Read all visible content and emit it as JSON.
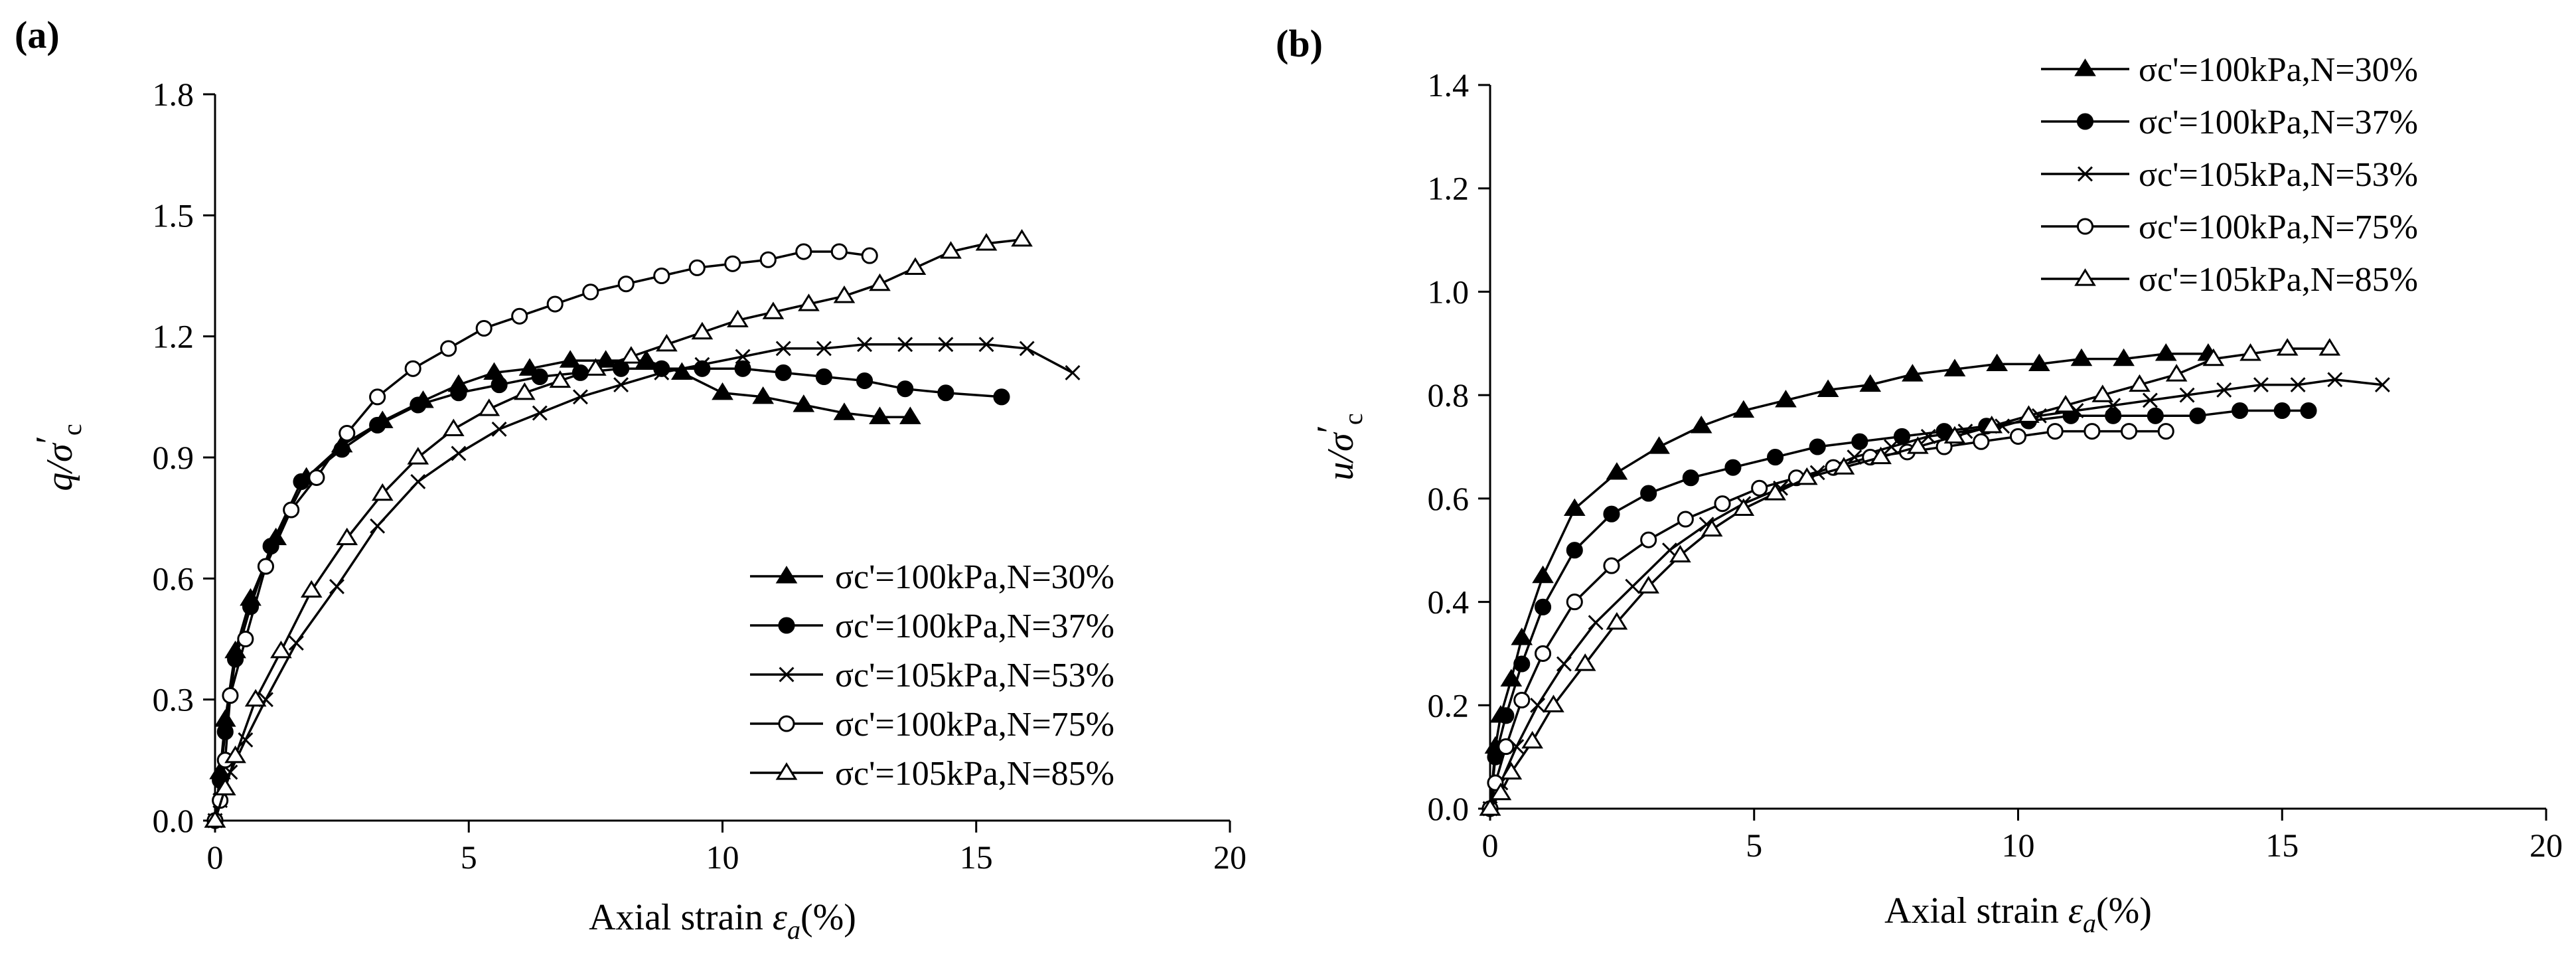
{
  "chart_data": [
    {
      "panel_label": "(a)",
      "type": "line",
      "ylabel": {
        "main": "q/σ",
        "prime": "′",
        "sub": "c"
      },
      "xlabel": {
        "text": "Axial strain ",
        "symbol": "ε",
        "sub": "a",
        "unit": "(%)"
      },
      "xlim": [
        0,
        20
      ],
      "ylim": [
        0,
        1.8
      ],
      "xticks": [
        "0",
        "5",
        "10",
        "15",
        "20"
      ],
      "yticks": [
        "0.0",
        "0.3",
        "0.6",
        "0.9",
        "1.2",
        "1.5",
        "1.8"
      ],
      "legend_position": "bottom-right",
      "series": [
        {
          "name": "σc'=100kPa,N=30%",
          "marker": "filled-triangle",
          "x": [
            0,
            0.1,
            0.2,
            0.4,
            0.7,
            1.2,
            1.8,
            2.5,
            3.3,
            4.1,
            4.8,
            5.5,
            6.2,
            7.0,
            7.7,
            8.5,
            9.2,
            10.0,
            10.8,
            11.6,
            12.4,
            13.1,
            13.7
          ],
          "y": [
            0,
            0.12,
            0.25,
            0.42,
            0.55,
            0.7,
            0.85,
            0.93,
            0.99,
            1.04,
            1.08,
            1.11,
            1.12,
            1.14,
            1.14,
            1.14,
            1.11,
            1.06,
            1.05,
            1.03,
            1.01,
            1.0,
            1.0
          ]
        },
        {
          "name": "σc'=100kPa,N=37%",
          "marker": "filled-circle",
          "x": [
            0,
            0.1,
            0.2,
            0.4,
            0.7,
            1.1,
            1.7,
            2.5,
            3.2,
            4.0,
            4.8,
            5.6,
            6.4,
            7.2,
            8.0,
            8.8,
            9.6,
            10.4,
            11.2,
            12.0,
            12.8,
            13.6,
            14.4,
            15.5
          ],
          "y": [
            0,
            0.1,
            0.22,
            0.4,
            0.53,
            0.68,
            0.84,
            0.92,
            0.98,
            1.03,
            1.06,
            1.08,
            1.1,
            1.11,
            1.12,
            1.12,
            1.12,
            1.12,
            1.11,
            1.1,
            1.09,
            1.07,
            1.06,
            1.05
          ]
        },
        {
          "name": "σc'=105kPa,N=53%",
          "marker": "cross",
          "x": [
            0,
            0.1,
            0.3,
            0.6,
            1.0,
            1.6,
            2.4,
            3.2,
            4.0,
            4.8,
            5.6,
            6.4,
            7.2,
            8.0,
            8.8,
            9.6,
            10.4,
            11.2,
            12.0,
            12.8,
            13.6,
            14.4,
            15.2,
            16.0,
            16.9
          ],
          "y": [
            0,
            0.05,
            0.12,
            0.2,
            0.3,
            0.44,
            0.58,
            0.73,
            0.84,
            0.91,
            0.97,
            1.01,
            1.05,
            1.08,
            1.11,
            1.13,
            1.15,
            1.17,
            1.17,
            1.18,
            1.18,
            1.18,
            1.18,
            1.17,
            1.11
          ]
        },
        {
          "name": "σc'=100kPa,N=75%",
          "marker": "open-circle",
          "x": [
            0,
            0.1,
            0.2,
            0.3,
            0.6,
            1.0,
            1.5,
            2.0,
            2.6,
            3.2,
            3.9,
            4.6,
            5.3,
            6.0,
            6.7,
            7.4,
            8.1,
            8.8,
            9.5,
            10.2,
            10.9,
            11.6,
            12.3,
            12.9
          ],
          "y": [
            0,
            0.05,
            0.15,
            0.31,
            0.45,
            0.63,
            0.77,
            0.85,
            0.96,
            1.05,
            1.12,
            1.17,
            1.22,
            1.25,
            1.28,
            1.31,
            1.33,
            1.35,
            1.37,
            1.38,
            1.39,
            1.41,
            1.41,
            1.4
          ]
        },
        {
          "name": "σc'=105kPa,N=85%",
          "marker": "open-triangle",
          "x": [
            0,
            0.2,
            0.4,
            0.8,
            1.3,
            1.9,
            2.6,
            3.3,
            4.0,
            4.7,
            5.4,
            6.1,
            6.8,
            7.5,
            8.2,
            8.9,
            9.6,
            10.3,
            11.0,
            11.7,
            12.4,
            13.1,
            13.8,
            14.5,
            15.2,
            15.9
          ],
          "y": [
            0,
            0.08,
            0.16,
            0.3,
            0.42,
            0.57,
            0.7,
            0.81,
            0.9,
            0.97,
            1.02,
            1.06,
            1.09,
            1.12,
            1.15,
            1.18,
            1.21,
            1.24,
            1.26,
            1.28,
            1.3,
            1.33,
            1.37,
            1.41,
            1.43,
            1.44
          ]
        }
      ]
    },
    {
      "panel_label": "(b)",
      "type": "line",
      "ylabel": {
        "main": "u/σ",
        "prime": "′",
        "sub": "c"
      },
      "xlabel": {
        "text": "Axial strain ",
        "symbol": "ε",
        "sub": "a",
        "unit": "(%)"
      },
      "xlim": [
        0,
        20
      ],
      "ylim": [
        0,
        1.4
      ],
      "xticks": [
        "0",
        "5",
        "10",
        "15",
        "20"
      ],
      "yticks": [
        "0.0",
        "0.2",
        "0.4",
        "0.6",
        "0.8",
        "1.0",
        "1.2",
        "1.4"
      ],
      "legend_position": "top-right",
      "series": [
        {
          "name": "σc'=100kPa,N=30%",
          "marker": "filled-triangle",
          "x": [
            0,
            0.1,
            0.2,
            0.4,
            0.6,
            1.0,
            1.6,
            2.4,
            3.2,
            4.0,
            4.8,
            5.6,
            6.4,
            7.2,
            8.0,
            8.8,
            9.6,
            10.4,
            11.2,
            12.0,
            12.8,
            13.6
          ],
          "y": [
            0,
            0.12,
            0.18,
            0.25,
            0.33,
            0.45,
            0.58,
            0.65,
            0.7,
            0.74,
            0.77,
            0.79,
            0.81,
            0.82,
            0.84,
            0.85,
            0.86,
            0.86,
            0.87,
            0.87,
            0.88,
            0.88
          ]
        },
        {
          "name": "σc'=100kPa,N=37%",
          "marker": "filled-circle",
          "x": [
            0,
            0.1,
            0.3,
            0.6,
            1.0,
            1.6,
            2.3,
            3.0,
            3.8,
            4.6,
            5.4,
            6.2,
            7.0,
            7.8,
            8.6,
            9.4,
            10.2,
            11.0,
            11.8,
            12.6,
            13.4,
            14.2,
            15.0,
            15.5
          ],
          "y": [
            0,
            0.1,
            0.18,
            0.28,
            0.39,
            0.5,
            0.57,
            0.61,
            0.64,
            0.66,
            0.68,
            0.7,
            0.71,
            0.72,
            0.73,
            0.74,
            0.75,
            0.76,
            0.76,
            0.76,
            0.76,
            0.77,
            0.77,
            0.77
          ]
        },
        {
          "name": "σc'=105kPa,N=53%",
          "marker": "cross",
          "x": [
            0,
            0.2,
            0.5,
            0.9,
            1.4,
            2.0,
            2.7,
            3.4,
            4.1,
            4.8,
            5.5,
            6.2,
            6.9,
            7.6,
            8.3,
            9.0,
            9.7,
            10.4,
            11.1,
            11.8,
            12.5,
            13.2,
            13.9,
            14.6,
            15.3,
            16.0,
            16.9
          ],
          "y": [
            0,
            0.05,
            0.12,
            0.2,
            0.28,
            0.36,
            0.43,
            0.5,
            0.55,
            0.59,
            0.62,
            0.65,
            0.68,
            0.7,
            0.72,
            0.73,
            0.74,
            0.76,
            0.77,
            0.78,
            0.79,
            0.8,
            0.81,
            0.82,
            0.82,
            0.83,
            0.82
          ]
        },
        {
          "name": "σc'=100kPa,N=75%",
          "marker": "open-circle",
          "x": [
            0,
            0.1,
            0.3,
            0.6,
            1.0,
            1.6,
            2.3,
            3.0,
            3.7,
            4.4,
            5.1,
            5.8,
            6.5,
            7.2,
            7.9,
            8.6,
            9.3,
            10.0,
            10.7,
            11.4,
            12.1,
            12.8
          ],
          "y": [
            0,
            0.05,
            0.12,
            0.21,
            0.3,
            0.4,
            0.47,
            0.52,
            0.56,
            0.59,
            0.62,
            0.64,
            0.66,
            0.68,
            0.69,
            0.7,
            0.71,
            0.72,
            0.73,
            0.73,
            0.73,
            0.73
          ]
        },
        {
          "name": "σc'=105kPa,N=85%",
          "marker": "open-triangle",
          "x": [
            0,
            0.2,
            0.4,
            0.8,
            1.2,
            1.8,
            2.4,
            3.0,
            3.6,
            4.2,
            4.8,
            5.4,
            6.0,
            6.7,
            7.4,
            8.1,
            8.8,
            9.5,
            10.2,
            10.9,
            11.6,
            12.3,
            13.0,
            13.7,
            14.4,
            15.1,
            15.9
          ],
          "y": [
            0,
            0.03,
            0.07,
            0.13,
            0.2,
            0.28,
            0.36,
            0.43,
            0.49,
            0.54,
            0.58,
            0.61,
            0.64,
            0.66,
            0.68,
            0.7,
            0.72,
            0.74,
            0.76,
            0.78,
            0.8,
            0.82,
            0.84,
            0.87,
            0.88,
            0.89,
            0.89
          ]
        }
      ]
    }
  ]
}
